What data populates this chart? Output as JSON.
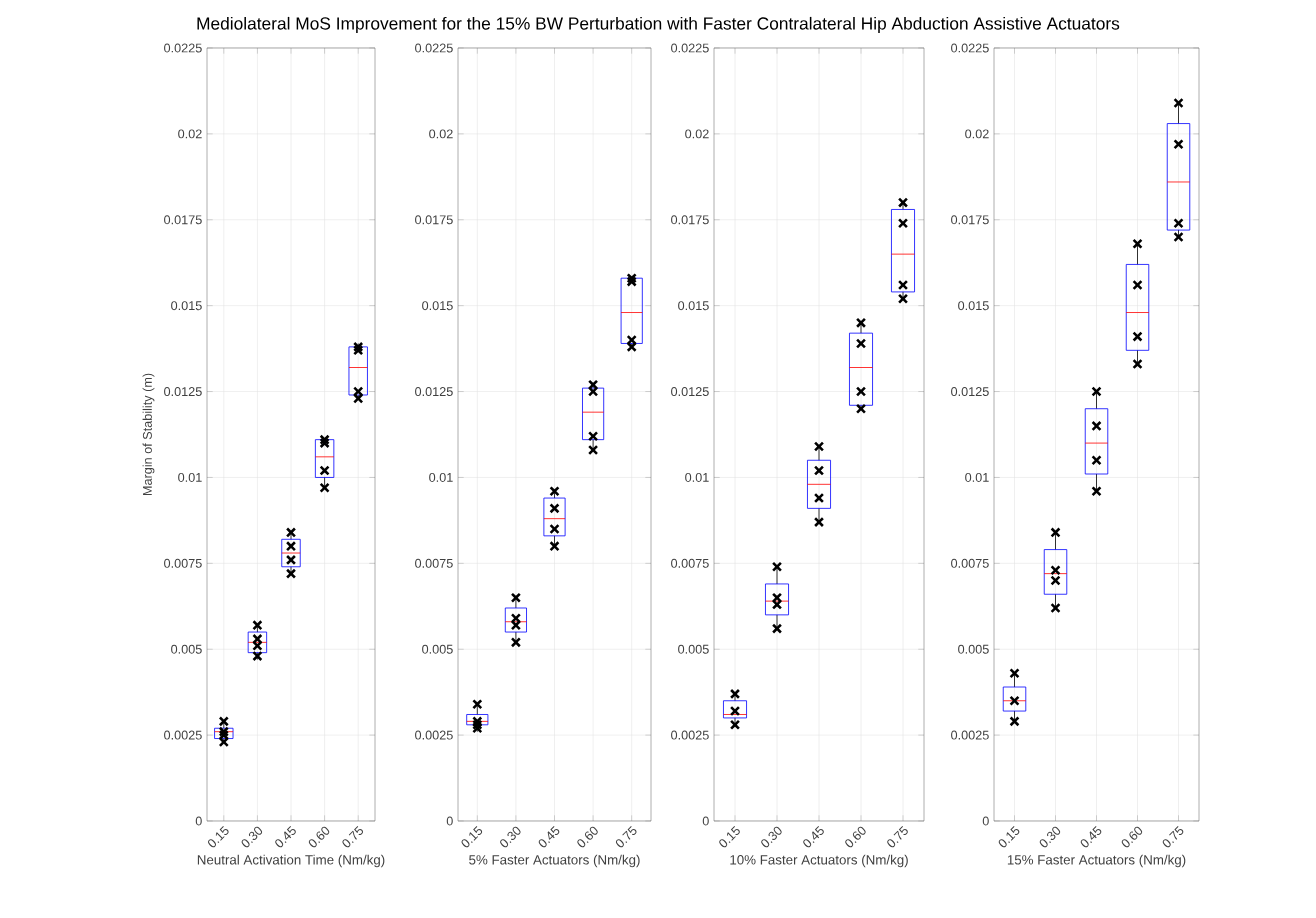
{
  "chart_data": [
    {
      "type": "box",
      "title": "Mediolateral MoS Improvement for the 15% BW Perturbation with Faster Contralateral Hip Abduction Assistive Actuators",
      "ylabel": "Margin of Stability (m)",
      "xlabel": "Neutral Activation Time (Nm/kg)",
      "categories": [
        "0.15",
        "0.30",
        "0.45",
        "0.60",
        "0.75"
      ],
      "ylim": [
        0,
        0.0225
      ],
      "yticks": [
        0,
        0.0025,
        0.005,
        0.0075,
        0.01,
        0.0125,
        0.015,
        0.0175,
        0.02,
        0.0225
      ],
      "grid": true,
      "series": [
        {
          "color": "#0000ff",
          "boxes": [
            {
              "low": 0.0023,
              "q1": 0.0024,
              "median": 0.0026,
              "q3": 0.0027,
              "high": 0.0029
            },
            {
              "low": 0.0047,
              "q1": 0.0049,
              "median": 0.0052,
              "q3": 0.0055,
              "high": 0.0057
            },
            {
              "low": 0.0072,
              "q1": 0.0074,
              "median": 0.0078,
              "q3": 0.0082,
              "high": 0.0084
            },
            {
              "low": 0.0097,
              "q1": 0.01,
              "median": 0.0106,
              "q3": 0.0111,
              "high": 0.0111
            },
            {
              "low": 0.0123,
              "q1": 0.0124,
              "median": 0.0132,
              "q3": 0.0138,
              "high": 0.0139
            }
          ]
        },
        {
          "type": "scatter",
          "color": "#000000",
          "marker": "cross",
          "x": [
            "0.15",
            "0.15",
            "0.15",
            "0.15",
            "0.30",
            "0.30",
            "0.30",
            "0.30",
            "0.45",
            "0.45",
            "0.45",
            "0.45",
            "0.60",
            "0.60",
            "0.60",
            "0.60",
            "0.75",
            "0.75",
            "0.75",
            "0.75"
          ],
          "values": [
            0.0029,
            0.0026,
            0.0025,
            0.0023,
            0.0057,
            0.0053,
            0.0051,
            0.0048,
            0.0084,
            0.008,
            0.0076,
            0.0072,
            0.0111,
            0.011,
            0.0102,
            0.0097,
            0.0138,
            0.0137,
            0.0125,
            0.0123
          ]
        }
      ]
    },
    {
      "type": "box",
      "xlabel": "5% Faster Actuators (Nm/kg)",
      "categories": [
        "0.15",
        "0.30",
        "0.45",
        "0.60",
        "0.75"
      ],
      "ylim": [
        0,
        0.0225
      ],
      "yticks": [
        0,
        0.0025,
        0.005,
        0.0075,
        0.01,
        0.0125,
        0.015,
        0.0175,
        0.02,
        0.0225
      ],
      "grid": true,
      "series": [
        {
          "color": "#0000ff",
          "boxes": [
            {
              "low": 0.0026,
              "q1": 0.0028,
              "median": 0.0029,
              "q3": 0.0031,
              "high": 0.0034
            },
            {
              "low": 0.0052,
              "q1": 0.0055,
              "median": 0.0058,
              "q3": 0.0062,
              "high": 0.0065
            },
            {
              "low": 0.008,
              "q1": 0.0083,
              "median": 0.0088,
              "q3": 0.0094,
              "high": 0.0096
            },
            {
              "low": 0.0108,
              "q1": 0.0111,
              "median": 0.0119,
              "q3": 0.0126,
              "high": 0.0127
            },
            {
              "low": 0.0138,
              "q1": 0.0139,
              "median": 0.0148,
              "q3": 0.0158,
              "high": 0.0158
            }
          ]
        },
        {
          "type": "scatter",
          "color": "#000000",
          "marker": "cross",
          "x": [
            "0.15",
            "0.15",
            "0.15",
            "0.15",
            "0.30",
            "0.30",
            "0.30",
            "0.30",
            "0.45",
            "0.45",
            "0.45",
            "0.45",
            "0.60",
            "0.60",
            "0.60",
            "0.60",
            "0.75",
            "0.75",
            "0.75",
            "0.75"
          ],
          "values": [
            0.0034,
            0.0029,
            0.0028,
            0.0027,
            0.0065,
            0.0059,
            0.0057,
            0.0052,
            0.0096,
            0.0091,
            0.0085,
            0.008,
            0.0127,
            0.0125,
            0.0112,
            0.0108,
            0.0158,
            0.0157,
            0.014,
            0.0138
          ]
        }
      ]
    },
    {
      "type": "box",
      "xlabel": "10% Faster Actuators (Nm/kg)",
      "categories": [
        "0.15",
        "0.30",
        "0.45",
        "0.60",
        "0.75"
      ],
      "ylim": [
        0,
        0.0225
      ],
      "yticks": [
        0,
        0.0025,
        0.005,
        0.0075,
        0.01,
        0.0125,
        0.015,
        0.0175,
        0.02,
        0.0225
      ],
      "grid": true,
      "series": [
        {
          "color": "#0000ff",
          "boxes": [
            {
              "low": 0.0028,
              "q1": 0.003,
              "median": 0.0031,
              "q3": 0.0035,
              "high": 0.0037
            },
            {
              "low": 0.0056,
              "q1": 0.006,
              "median": 0.0064,
              "q3": 0.0069,
              "high": 0.0074
            },
            {
              "low": 0.0087,
              "q1": 0.0091,
              "median": 0.0098,
              "q3": 0.0105,
              "high": 0.0109
            },
            {
              "low": 0.012,
              "q1": 0.0121,
              "median": 0.0132,
              "q3": 0.0142,
              "high": 0.0145
            },
            {
              "low": 0.0152,
              "q1": 0.0154,
              "median": 0.0165,
              "q3": 0.0178,
              "high": 0.018
            }
          ]
        },
        {
          "type": "scatter",
          "color": "#000000",
          "marker": "cross",
          "x": [
            "0.15",
            "0.15",
            "0.15",
            "0.30",
            "0.30",
            "0.30",
            "0.30",
            "0.45",
            "0.45",
            "0.45",
            "0.45",
            "0.60",
            "0.60",
            "0.60",
            "0.60",
            "0.75",
            "0.75",
            "0.75",
            "0.75"
          ],
          "values": [
            0.0037,
            0.0032,
            0.0028,
            0.0074,
            0.0065,
            0.0063,
            0.0056,
            0.0109,
            0.0102,
            0.0094,
            0.0087,
            0.0145,
            0.0139,
            0.0125,
            0.012,
            0.018,
            0.0174,
            0.0156,
            0.0152
          ]
        }
      ]
    },
    {
      "type": "box",
      "xlabel": "15% Faster Actuators (Nm/kg)",
      "categories": [
        "0.15",
        "0.30",
        "0.45",
        "0.60",
        "0.75"
      ],
      "ylim": [
        0,
        0.0225
      ],
      "yticks": [
        0,
        0.0025,
        0.005,
        0.0075,
        0.01,
        0.0125,
        0.015,
        0.0175,
        0.02,
        0.0225
      ],
      "grid": true,
      "series": [
        {
          "color": "#0000ff",
          "boxes": [
            {
              "low": 0.0029,
              "q1": 0.0032,
              "median": 0.0035,
              "q3": 0.0039,
              "high": 0.0043
            },
            {
              "low": 0.0062,
              "q1": 0.0066,
              "median": 0.0072,
              "q3": 0.0079,
              "high": 0.0084
            },
            {
              "low": 0.0096,
              "q1": 0.0101,
              "median": 0.011,
              "q3": 0.012,
              "high": 0.0125
            },
            {
              "low": 0.0133,
              "q1": 0.0137,
              "median": 0.0148,
              "q3": 0.0162,
              "high": 0.0168
            },
            {
              "low": 0.017,
              "q1": 0.0172,
              "median": 0.0186,
              "q3": 0.0203,
              "high": 0.0209
            }
          ]
        },
        {
          "type": "scatter",
          "color": "#000000",
          "marker": "cross",
          "x": [
            "0.15",
            "0.15",
            "0.15",
            "0.30",
            "0.30",
            "0.30",
            "0.30",
            "0.45",
            "0.45",
            "0.45",
            "0.45",
            "0.60",
            "0.60",
            "0.60",
            "0.60",
            "0.75",
            "0.75",
            "0.75",
            "0.75"
          ],
          "values": [
            0.0043,
            0.0035,
            0.0029,
            0.0084,
            0.0073,
            0.007,
            0.0062,
            0.0125,
            0.0115,
            0.0105,
            0.0096,
            0.0168,
            0.0156,
            0.0141,
            0.0133,
            0.0209,
            0.0197,
            0.0174,
            0.017
          ]
        }
      ]
    }
  ]
}
